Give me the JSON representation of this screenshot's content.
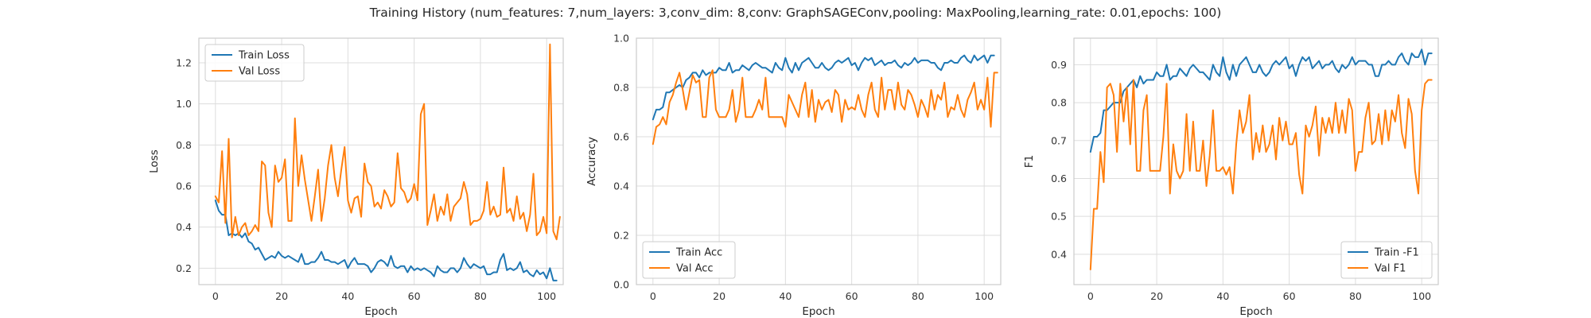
{
  "suptitle": "Training History (num_features: 7,num_layers: 3,conv_dim: 8,conv: GraphSAGEConv,pooling: MaxPooling,learning_rate: 0.01,epochs: 100)",
  "colors": {
    "train": "#1f77b4",
    "val": "#ff7f0e",
    "grid": "#dddddd",
    "axes": "#cccccc"
  },
  "chart_data": [
    {
      "type": "line",
      "xlabel": "Epoch",
      "ylabel": "Loss",
      "xlim": [
        -5,
        105
      ],
      "ylim": [
        0.12,
        1.32
      ],
      "xticks": [
        0,
        20,
        40,
        60,
        80,
        100
      ],
      "yticks": [
        0.2,
        0.4,
        0.6,
        0.8,
        1.0,
        1.2
      ],
      "ytick_labels": [
        "0.2",
        "0.4",
        "0.6",
        "0.8",
        "1.0",
        "1.2"
      ],
      "legend_position": "upper-left",
      "series": [
        {
          "name": "Train Loss",
          "color": "#1f77b4",
          "values": [
            0.53,
            0.48,
            0.46,
            0.46,
            0.36,
            0.37,
            0.36,
            0.37,
            0.35,
            0.37,
            0.33,
            0.32,
            0.29,
            0.3,
            0.27,
            0.24,
            0.25,
            0.26,
            0.25,
            0.28,
            0.26,
            0.25,
            0.26,
            0.25,
            0.24,
            0.23,
            0.27,
            0.22,
            0.22,
            0.23,
            0.23,
            0.25,
            0.28,
            0.24,
            0.24,
            0.23,
            0.23,
            0.22,
            0.23,
            0.24,
            0.2,
            0.23,
            0.25,
            0.22,
            0.22,
            0.22,
            0.21,
            0.18,
            0.2,
            0.23,
            0.24,
            0.23,
            0.21,
            0.26,
            0.21,
            0.2,
            0.21,
            0.21,
            0.18,
            0.21,
            0.19,
            0.2,
            0.19,
            0.2,
            0.19,
            0.18,
            0.16,
            0.21,
            0.19,
            0.18,
            0.18,
            0.2,
            0.2,
            0.18,
            0.2,
            0.25,
            0.22,
            0.2,
            0.22,
            0.21,
            0.2,
            0.21,
            0.17,
            0.17,
            0.18,
            0.18,
            0.24,
            0.27,
            0.19,
            0.2,
            0.19,
            0.2,
            0.23,
            0.18,
            0.19,
            0.17,
            0.16,
            0.19,
            0.17,
            0.18,
            0.15,
            0.2,
            0.14,
            0.14
          ]
        },
        {
          "name": "Val Loss",
          "color": "#ff7f0e",
          "values": [
            0.55,
            0.52,
            0.77,
            0.42,
            0.83,
            0.35,
            0.45,
            0.36,
            0.4,
            0.42,
            0.36,
            0.38,
            0.41,
            0.38,
            0.72,
            0.7,
            0.47,
            0.4,
            0.7,
            0.62,
            0.64,
            0.73,
            0.43,
            0.43,
            0.93,
            0.6,
            0.75,
            0.63,
            0.53,
            0.43,
            0.55,
            0.68,
            0.43,
            0.54,
            0.7,
            0.8,
            0.64,
            0.55,
            0.68,
            0.79,
            0.53,
            0.47,
            0.54,
            0.55,
            0.45,
            0.71,
            0.62,
            0.6,
            0.5,
            0.52,
            0.49,
            0.58,
            0.55,
            0.5,
            0.52,
            0.76,
            0.59,
            0.57,
            0.52,
            0.54,
            0.61,
            0.53,
            0.95,
            1.0,
            0.41,
            0.48,
            0.56,
            0.43,
            0.5,
            0.46,
            0.56,
            0.43,
            0.5,
            0.52,
            0.54,
            0.62,
            0.56,
            0.41,
            0.43,
            0.43,
            0.44,
            0.48,
            0.62,
            0.46,
            0.5,
            0.45,
            0.46,
            0.69,
            0.47,
            0.49,
            0.43,
            0.55,
            0.44,
            0.47,
            0.38,
            0.46,
            0.66,
            0.36,
            0.38,
            0.45,
            0.37,
            1.29,
            0.38,
            0.34,
            0.45
          ]
        }
      ]
    },
    {
      "type": "line",
      "xlabel": "Epoch",
      "ylabel": "Accuracy",
      "xlim": [
        -5,
        105
      ],
      "ylim": [
        0.0,
        1.0
      ],
      "xticks": [
        0,
        20,
        40,
        60,
        80,
        100
      ],
      "yticks": [
        0.0,
        0.2,
        0.4,
        0.6,
        0.8,
        1.0
      ],
      "ytick_labels": [
        "0.0",
        "0.2",
        "0.4",
        "0.6",
        "0.8",
        "1.0"
      ],
      "legend_position": "lower-left",
      "series": [
        {
          "name": "Train Acc",
          "color": "#1f77b4",
          "values": [
            0.67,
            0.71,
            0.71,
            0.72,
            0.78,
            0.78,
            0.79,
            0.8,
            0.81,
            0.8,
            0.83,
            0.84,
            0.86,
            0.86,
            0.84,
            0.87,
            0.85,
            0.86,
            0.86,
            0.86,
            0.88,
            0.87,
            0.87,
            0.9,
            0.86,
            0.87,
            0.87,
            0.89,
            0.88,
            0.87,
            0.89,
            0.9,
            0.89,
            0.88,
            0.88,
            0.87,
            0.86,
            0.9,
            0.88,
            0.87,
            0.92,
            0.88,
            0.86,
            0.9,
            0.87,
            0.9,
            0.91,
            0.92,
            0.9,
            0.88,
            0.88,
            0.9,
            0.88,
            0.87,
            0.88,
            0.9,
            0.91,
            0.9,
            0.91,
            0.92,
            0.89,
            0.9,
            0.87,
            0.9,
            0.92,
            0.91,
            0.92,
            0.89,
            0.9,
            0.91,
            0.89,
            0.9,
            0.9,
            0.91,
            0.89,
            0.88,
            0.9,
            0.89,
            0.9,
            0.92,
            0.9,
            0.91,
            0.91,
            0.91,
            0.9,
            0.9,
            0.88,
            0.87,
            0.9,
            0.9,
            0.91,
            0.9,
            0.9,
            0.92,
            0.93,
            0.91,
            0.9,
            0.93,
            0.91,
            0.92,
            0.93,
            0.9,
            0.93,
            0.93
          ]
        },
        {
          "name": "Val Acc",
          "color": "#ff7f0e",
          "values": [
            0.57,
            0.64,
            0.65,
            0.68,
            0.65,
            0.74,
            0.77,
            0.82,
            0.86,
            0.79,
            0.71,
            0.78,
            0.85,
            0.82,
            0.83,
            0.68,
            0.68,
            0.84,
            0.87,
            0.71,
            0.68,
            0.68,
            0.68,
            0.71,
            0.79,
            0.66,
            0.71,
            0.84,
            0.68,
            0.68,
            0.68,
            0.71,
            0.75,
            0.71,
            0.84,
            0.68,
            0.68,
            0.68,
            0.68,
            0.68,
            0.64,
            0.77,
            0.74,
            0.71,
            0.68,
            0.77,
            0.82,
            0.68,
            0.79,
            0.66,
            0.75,
            0.71,
            0.74,
            0.75,
            0.7,
            0.79,
            0.77,
            0.66,
            0.75,
            0.71,
            0.72,
            0.71,
            0.77,
            0.71,
            0.68,
            0.77,
            0.82,
            0.71,
            0.68,
            0.84,
            0.71,
            0.79,
            0.79,
            0.71,
            0.82,
            0.73,
            0.71,
            0.79,
            0.77,
            0.73,
            0.68,
            0.75,
            0.72,
            0.68,
            0.79,
            0.71,
            0.77,
            0.75,
            0.82,
            0.68,
            0.72,
            0.71,
            0.77,
            0.71,
            0.68,
            0.75,
            0.78,
            0.82,
            0.71,
            0.75,
            0.71,
            0.84,
            0.64,
            0.86,
            0.86
          ]
        }
      ]
    },
    {
      "type": "line",
      "xlabel": "Epoch",
      "ylabel": "F1",
      "xlim": [
        -5,
        105
      ],
      "ylim": [
        0.32,
        0.97
      ],
      "xticks": [
        0,
        20,
        40,
        60,
        80,
        100
      ],
      "yticks": [
        0.4,
        0.5,
        0.6,
        0.7,
        0.8,
        0.9
      ],
      "ytick_labels": [
        "0.4",
        "0.5",
        "0.6",
        "0.7",
        "0.8",
        "0.9"
      ],
      "legend_position": "lower-right",
      "series": [
        {
          "name": "Train -F1",
          "color": "#1f77b4",
          "values": [
            0.67,
            0.71,
            0.71,
            0.72,
            0.78,
            0.78,
            0.79,
            0.8,
            0.8,
            0.8,
            0.83,
            0.84,
            0.85,
            0.86,
            0.84,
            0.87,
            0.85,
            0.86,
            0.86,
            0.86,
            0.88,
            0.87,
            0.87,
            0.9,
            0.86,
            0.87,
            0.87,
            0.89,
            0.88,
            0.87,
            0.89,
            0.9,
            0.89,
            0.88,
            0.88,
            0.87,
            0.86,
            0.9,
            0.88,
            0.87,
            0.92,
            0.88,
            0.86,
            0.9,
            0.87,
            0.9,
            0.91,
            0.92,
            0.9,
            0.88,
            0.88,
            0.9,
            0.88,
            0.87,
            0.88,
            0.9,
            0.91,
            0.9,
            0.91,
            0.92,
            0.89,
            0.9,
            0.87,
            0.9,
            0.92,
            0.91,
            0.92,
            0.89,
            0.9,
            0.91,
            0.89,
            0.9,
            0.9,
            0.91,
            0.89,
            0.88,
            0.9,
            0.89,
            0.9,
            0.92,
            0.9,
            0.91,
            0.91,
            0.91,
            0.9,
            0.9,
            0.87,
            0.87,
            0.9,
            0.9,
            0.91,
            0.9,
            0.9,
            0.92,
            0.93,
            0.91,
            0.9,
            0.93,
            0.92,
            0.92,
            0.94,
            0.9,
            0.93,
            0.93
          ]
        },
        {
          "name": "Val F1",
          "color": "#ff7f0e",
          "values": [
            0.36,
            0.52,
            0.52,
            0.67,
            0.59,
            0.84,
            0.85,
            0.82,
            0.67,
            0.85,
            0.75,
            0.84,
            0.69,
            0.86,
            0.62,
            0.62,
            0.78,
            0.82,
            0.62,
            0.62,
            0.62,
            0.62,
            0.71,
            0.85,
            0.56,
            0.69,
            0.62,
            0.6,
            0.62,
            0.77,
            0.62,
            0.75,
            0.62,
            0.62,
            0.7,
            0.58,
            0.66,
            0.78,
            0.62,
            0.62,
            0.63,
            0.61,
            0.63,
            0.56,
            0.69,
            0.78,
            0.72,
            0.75,
            0.82,
            0.65,
            0.72,
            0.67,
            0.74,
            0.67,
            0.69,
            0.74,
            0.65,
            0.76,
            0.7,
            0.75,
            0.69,
            0.69,
            0.72,
            0.61,
            0.56,
            0.74,
            0.71,
            0.74,
            0.79,
            0.66,
            0.76,
            0.72,
            0.76,
            0.72,
            0.8,
            0.72,
            0.78,
            0.72,
            0.81,
            0.78,
            0.62,
            0.67,
            0.67,
            0.76,
            0.8,
            0.69,
            0.7,
            0.77,
            0.69,
            0.78,
            0.7,
            0.78,
            0.75,
            0.82,
            0.72,
            0.68,
            0.81,
            0.77,
            0.62,
            0.56,
            0.78,
            0.85,
            0.86,
            0.86
          ]
        }
      ]
    }
  ]
}
